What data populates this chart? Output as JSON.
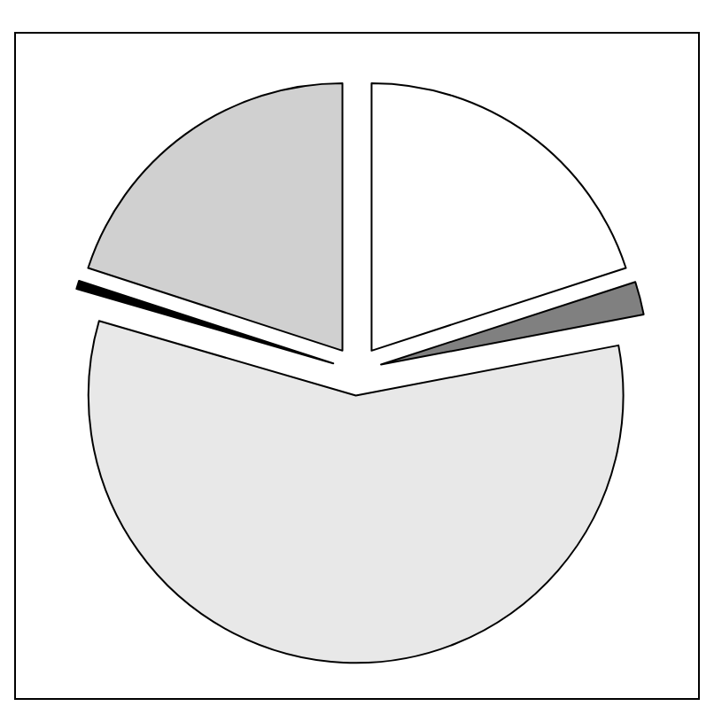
{
  "chart_data": {
    "type": "pie",
    "categories": [
      null,
      null,
      null,
      null,
      null
    ],
    "values": [
      20,
      2,
      57.5,
      0.5,
      20
    ],
    "colors": [
      "#ffffff",
      "#808080",
      "#e8e8e8",
      "#000000",
      "#d0d0d0"
    ]
  }
}
